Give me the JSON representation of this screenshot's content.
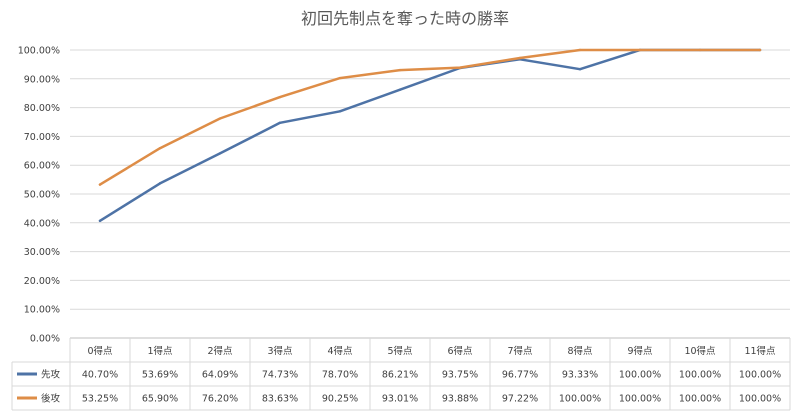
{
  "chart_data": {
    "type": "line",
    "title": "初回先制点を奪った時の勝率",
    "categories": [
      "0得点",
      "1得点",
      "2得点",
      "3得点",
      "4得点",
      "5得点",
      "6得点",
      "7得点",
      "8得点",
      "9得点",
      "10得点",
      "11得点"
    ],
    "ylim": [
      0,
      100
    ],
    "y_ticks": [
      "0.00%",
      "10.00%",
      "20.00%",
      "30.00%",
      "40.00%",
      "50.00%",
      "60.00%",
      "70.00%",
      "80.00%",
      "90.00%",
      "100.00%"
    ],
    "grid": true,
    "legend": "data-table",
    "series": [
      {
        "name": "先攻",
        "color": "#4e73a6",
        "values": [
          40.7,
          53.69,
          64.09,
          74.73,
          78.7,
          86.21,
          93.75,
          96.77,
          93.33,
          100.0,
          100.0,
          100.0
        ],
        "labels": [
          "40.70%",
          "53.69%",
          "64.09%",
          "74.73%",
          "78.70%",
          "86.21%",
          "93.75%",
          "96.77%",
          "93.33%",
          "100.00%",
          "100.00%",
          "100.00%"
        ]
      },
      {
        "name": "後攻",
        "color": "#de8d47",
        "values": [
          53.25,
          65.9,
          76.2,
          83.63,
          90.25,
          93.01,
          93.88,
          97.22,
          100.0,
          100.0,
          100.0,
          100.0
        ],
        "labels": [
          "53.25%",
          "65.90%",
          "76.20%",
          "83.63%",
          "90.25%",
          "93.01%",
          "93.88%",
          "97.22%",
          "100.00%",
          "100.00%",
          "100.00%",
          "100.00%"
        ]
      }
    ]
  }
}
